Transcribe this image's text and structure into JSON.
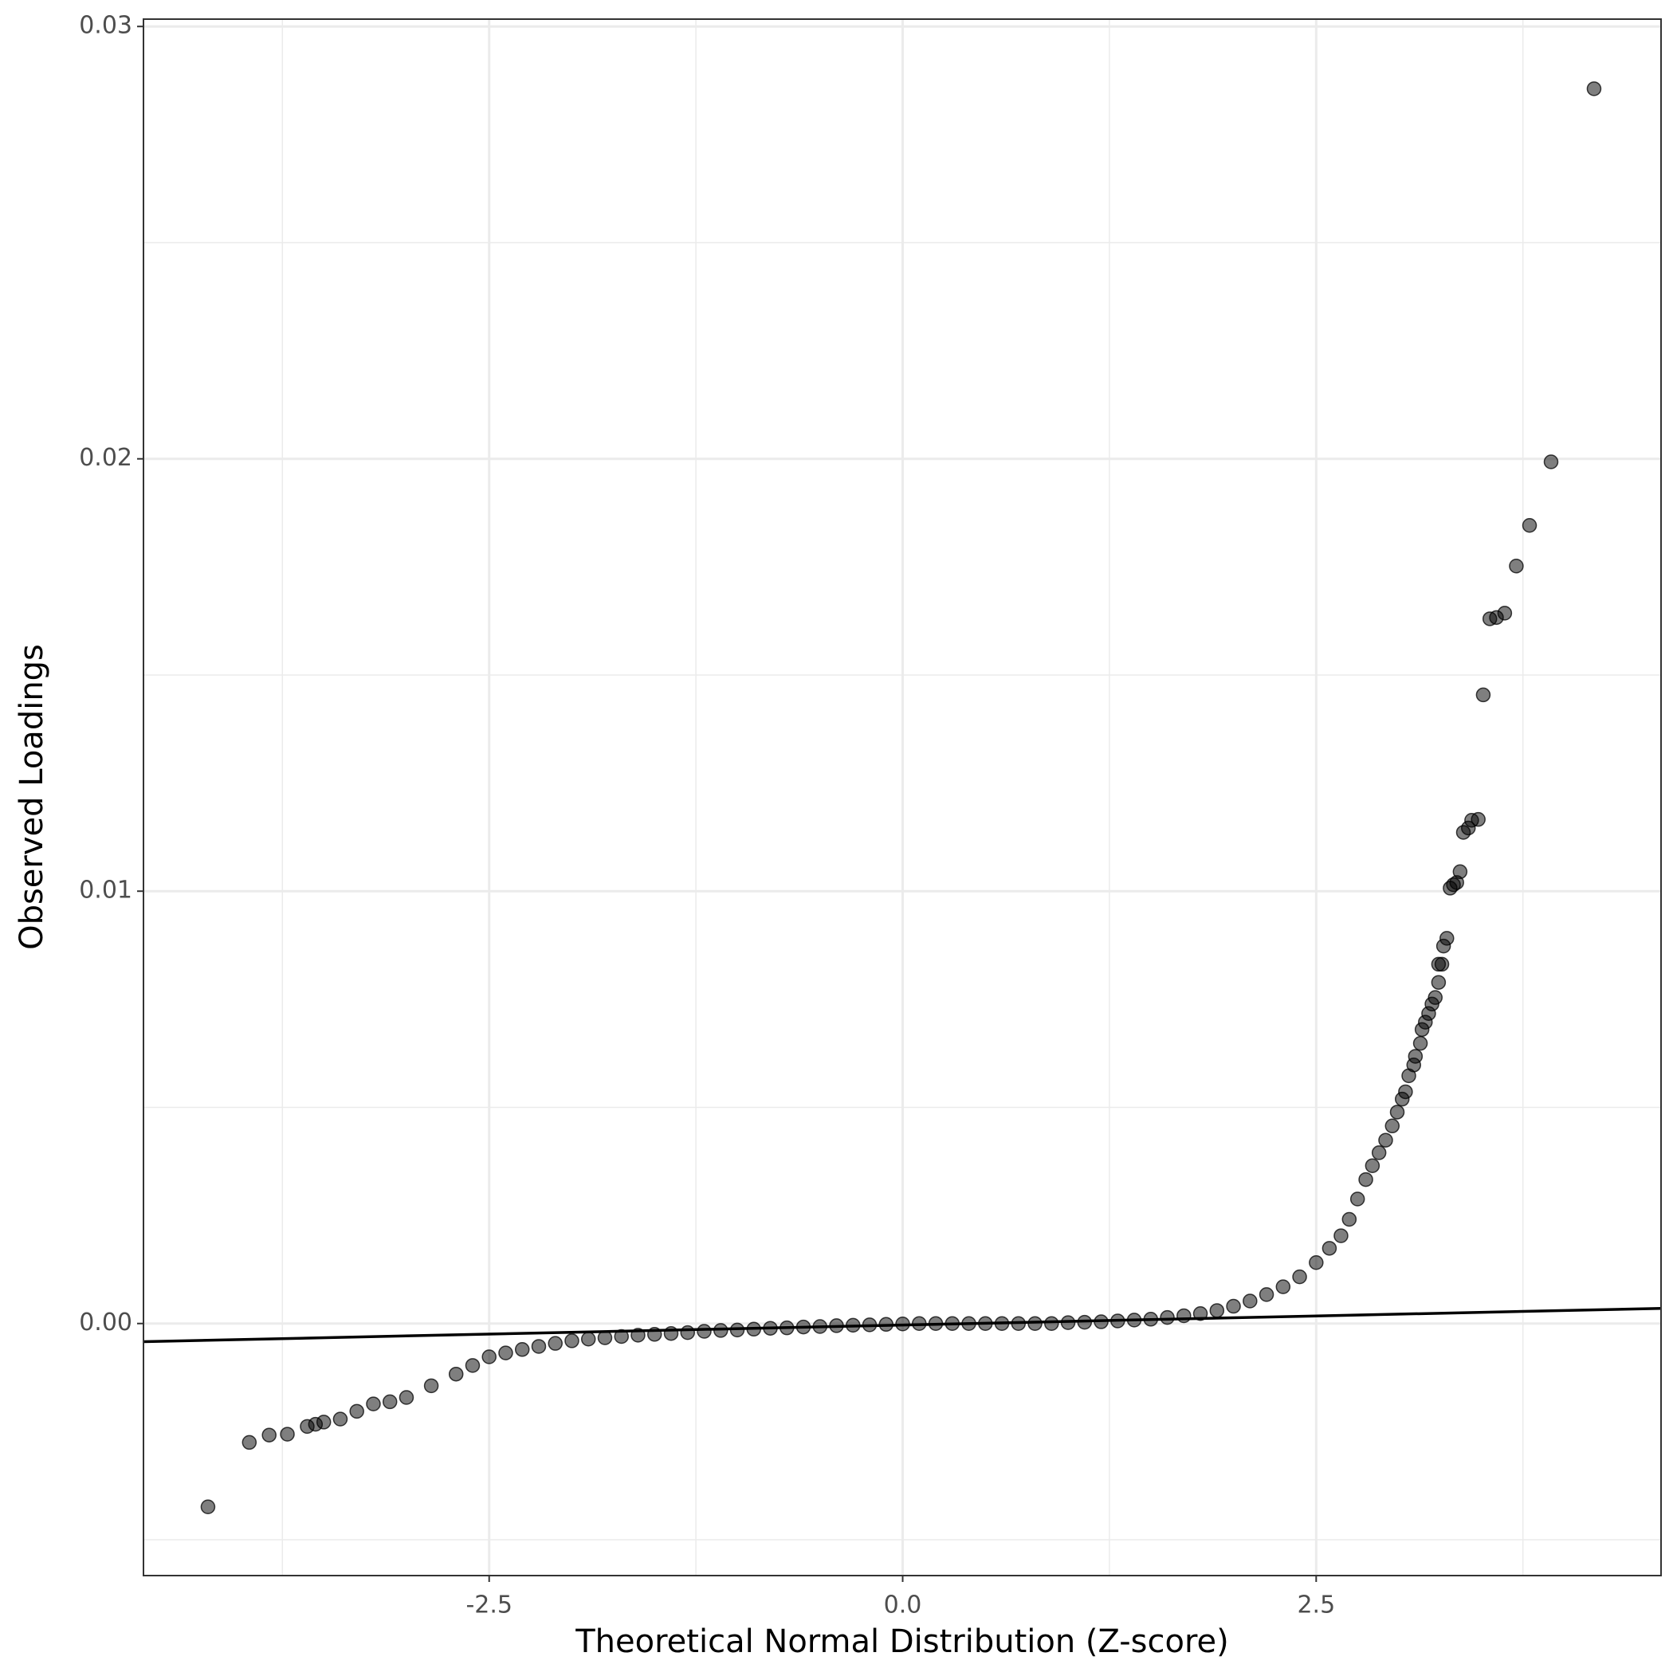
{
  "chart_data": {
    "type": "scatter",
    "x_label": "Theoretical Normal Distribution (Z-score)",
    "y_label": "Observed Loadings",
    "xlim": [
      -4.59,
      4.585
    ],
    "ylim": [
      -0.00583,
      0.03017
    ],
    "xticks": [
      -2.5,
      {
        "value": 0,
        "label": "0.0"
      },
      2.5
    ],
    "yticks": [
      {
        "value": 0,
        "label": "0.00"
      },
      0.01,
      0.02,
      0.03
    ],
    "xminor": [
      -3.75,
      -1.25,
      1.25,
      3.75
    ],
    "yminor": [
      -0.005,
      0.005,
      0.015,
      0.025
    ],
    "grid": true,
    "color": "#000000",
    "reference_line": {
      "x": [
        -4.59,
        4.585
      ],
      "y": [
        -0.00042,
        0.00035
      ]
    },
    "x": [
      -4.2,
      -3.95,
      -3.83,
      -3.72,
      -3.6,
      -3.55,
      -3.5,
      -3.4,
      -3.3,
      -3.2,
      -3.1,
      -3.0,
      -2.85,
      -2.7,
      -2.6,
      -2.5,
      -2.4,
      -2.3,
      -2.2,
      -2.1,
      -2.0,
      -1.9,
      -1.8,
      -1.7,
      -1.6,
      -1.5,
      -1.4,
      -1.3,
      -1.2,
      -1.1,
      -1.0,
      -0.9,
      -0.8,
      -0.7,
      -0.6,
      -0.5,
      -0.4,
      -0.3,
      -0.2,
      -0.1,
      0.0,
      0.1,
      0.2,
      0.3,
      0.4,
      0.5,
      0.6,
      0.7,
      0.8,
      0.9,
      1.0,
      1.1,
      1.2,
      1.3,
      1.4,
      1.5,
      1.6,
      1.7,
      1.8,
      1.9,
      2.0,
      2.1,
      2.2,
      2.3,
      2.4,
      2.5,
      2.58,
      2.65,
      2.7,
      2.75,
      2.8,
      2.84,
      2.88,
      2.92,
      2.96,
      2.99,
      3.02,
      3.04,
      3.06,
      3.09,
      3.1,
      3.13,
      3.14,
      3.16,
      3.18,
      3.2,
      3.22,
      3.24,
      3.24,
      3.26,
      3.27,
      3.29,
      3.31,
      3.33,
      3.35,
      3.37,
      3.39,
      3.42,
      3.44,
      3.48,
      3.51,
      3.55,
      3.59,
      3.64,
      3.71,
      3.79,
      3.92,
      4.18
    ],
    "values": [
      -0.00424,
      -0.00275,
      -0.00258,
      -0.00256,
      -0.00238,
      -0.00233,
      -0.00228,
      -0.00221,
      -0.00203,
      -0.00186,
      -0.00181,
      -0.00171,
      -0.00144,
      -0.00117,
      -0.00097,
      -0.00077,
      -0.00068,
      -0.0006,
      -0.00053,
      -0.00046,
      -0.0004,
      -0.00036,
      -0.00033,
      -0.0003,
      -0.00027,
      -0.00025,
      -0.00023,
      -0.00021,
      -0.00018,
      -0.00016,
      -0.00015,
      -0.00013,
      -0.00011,
      -0.0001,
      -8e-05,
      -7e-05,
      -5e-05,
      -4e-05,
      -3e-05,
      -2e-05,
      -1e-05,
      0,
      0,
      0,
      0,
      0,
      0,
      0,
      0,
      0,
      2e-05,
      3e-05,
      4e-05,
      6e-05,
      8e-05,
      0.0001,
      0.00014,
      0.00018,
      0.00023,
      0.0003,
      0.0004,
      0.00052,
      0.00067,
      0.00085,
      0.00108,
      0.00141,
      0.00174,
      0.00203,
      0.00241,
      0.00288,
      0.00333,
      0.00365,
      0.00395,
      0.00424,
      0.00457,
      0.00489,
      0.00519,
      0.00536,
      0.00573,
      0.00598,
      0.00618,
      0.00648,
      0.0068,
      0.00697,
      0.00717,
      0.00739,
      0.00754,
      0.00789,
      0.00831,
      0.00831,
      0.00873,
      0.00891,
      0.01007,
      0.01015,
      0.0102,
      0.01045,
      0.01136,
      0.01146,
      0.01164,
      0.01166,
      0.01454,
      0.0163,
      0.01633,
      0.01643,
      0.01752,
      0.01846,
      0.01993,
      0.02856
    ]
  }
}
